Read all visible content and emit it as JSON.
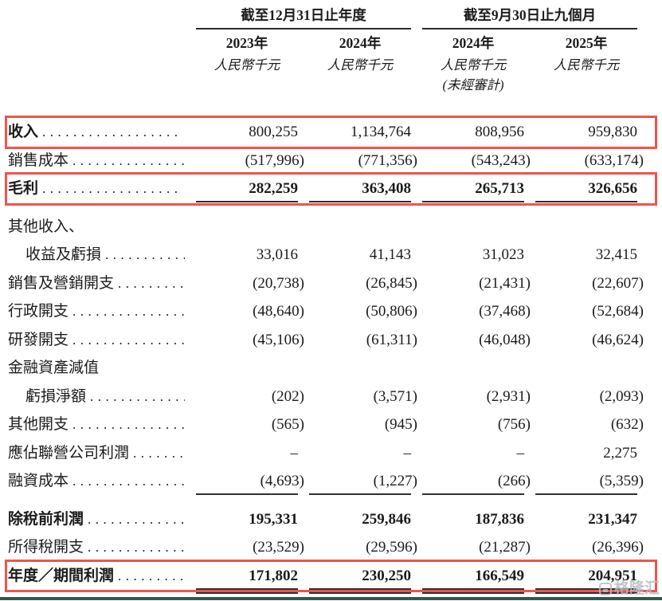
{
  "page": {
    "accent_red": "#f0544c",
    "bottom_bar_color": "#33584b",
    "watermark_color": "#b7bcc4",
    "watermark_text": "格隆汇"
  },
  "header": {
    "groups": [
      {
        "title": "截至12月31日止年度",
        "cols": [
          "2023年",
          "2024年"
        ]
      },
      {
        "title": "截至9月30日止九個月",
        "cols": [
          "2024年",
          "2025年"
        ]
      }
    ],
    "unit_label": "人民幣千元",
    "unaudited_label": "(未經審計)",
    "unaudited_col_index": 2
  },
  "table": {
    "rows": [
      {
        "label": "收入",
        "dots": "..................",
        "values": [
          "800,255",
          "1,134,764",
          "808,956",
          "959,830"
        ],
        "bold_label": true,
        "bold_values": false,
        "highlight": true
      },
      {
        "label": "銷售成本",
        "dots": "..................",
        "values": [
          "(517,996)",
          "(771,356)",
          "(543,243)",
          "(633,174)"
        ]
      },
      {
        "label": "毛利",
        "dots": "..................",
        "values": [
          "282,259",
          "363,408",
          "265,713",
          "326,656"
        ],
        "bold_label": true,
        "bold_values": true,
        "highlight": true,
        "rule_below": "single"
      },
      {
        "label": "其他收入、",
        "values": [
          "",
          "",
          "",
          ""
        ],
        "spacer_before": true
      },
      {
        "label": "收益及虧損",
        "dots": "..................",
        "indent": true,
        "values": [
          "33,016",
          "41,143",
          "31,023",
          "32,415"
        ]
      },
      {
        "label": "銷售及營銷開支",
        "dots": "..................",
        "values": [
          "(20,738)",
          "(26,845)",
          "(21,431)",
          "(22,607)"
        ]
      },
      {
        "label": "行政開支",
        "dots": "..................",
        "values": [
          "(48,640)",
          "(50,806)",
          "(37,468)",
          "(52,684)"
        ]
      },
      {
        "label": "研發開支",
        "dots": "..................",
        "values": [
          "(45,106)",
          "(61,311)",
          "(46,048)",
          "(46,624)"
        ]
      },
      {
        "label": "金融資產減值",
        "values": [
          "",
          "",
          "",
          ""
        ]
      },
      {
        "label": "虧損淨額",
        "dots": "..................",
        "indent": true,
        "values": [
          "(202)",
          "(3,571)",
          "(2,931)",
          "(2,093)"
        ]
      },
      {
        "label": "其他開支",
        "dots": "..................",
        "values": [
          "(565)",
          "(945)",
          "(756)",
          "(632)"
        ]
      },
      {
        "label": "應佔聯營公司利潤",
        "dots": "..................",
        "values": [
          "–",
          "–",
          "–",
          "2,275"
        ]
      },
      {
        "label": "融資成本",
        "dots": "..................",
        "values": [
          "(4,693)",
          "(1,227)",
          "(266)",
          "(5,359)"
        ],
        "rule_below": "single"
      },
      {
        "label": "除稅前利潤",
        "dots": "..................",
        "values": [
          "195,331",
          "259,846",
          "187,836",
          "231,347"
        ],
        "bold_label": true,
        "bold_values": true,
        "spacer_before": true
      },
      {
        "label": "所得稅開支",
        "dots": "..................",
        "values": [
          "(23,529)",
          "(29,596)",
          "(21,287)",
          "(26,396)"
        ],
        "rule_below": "single"
      },
      {
        "label": "年度／期間利潤",
        "dots": "..................",
        "values": [
          "171,802",
          "230,250",
          "166,549",
          "204,951"
        ],
        "bold_label": true,
        "bold_values": true,
        "highlight": true,
        "rule_below": "double"
      }
    ]
  }
}
